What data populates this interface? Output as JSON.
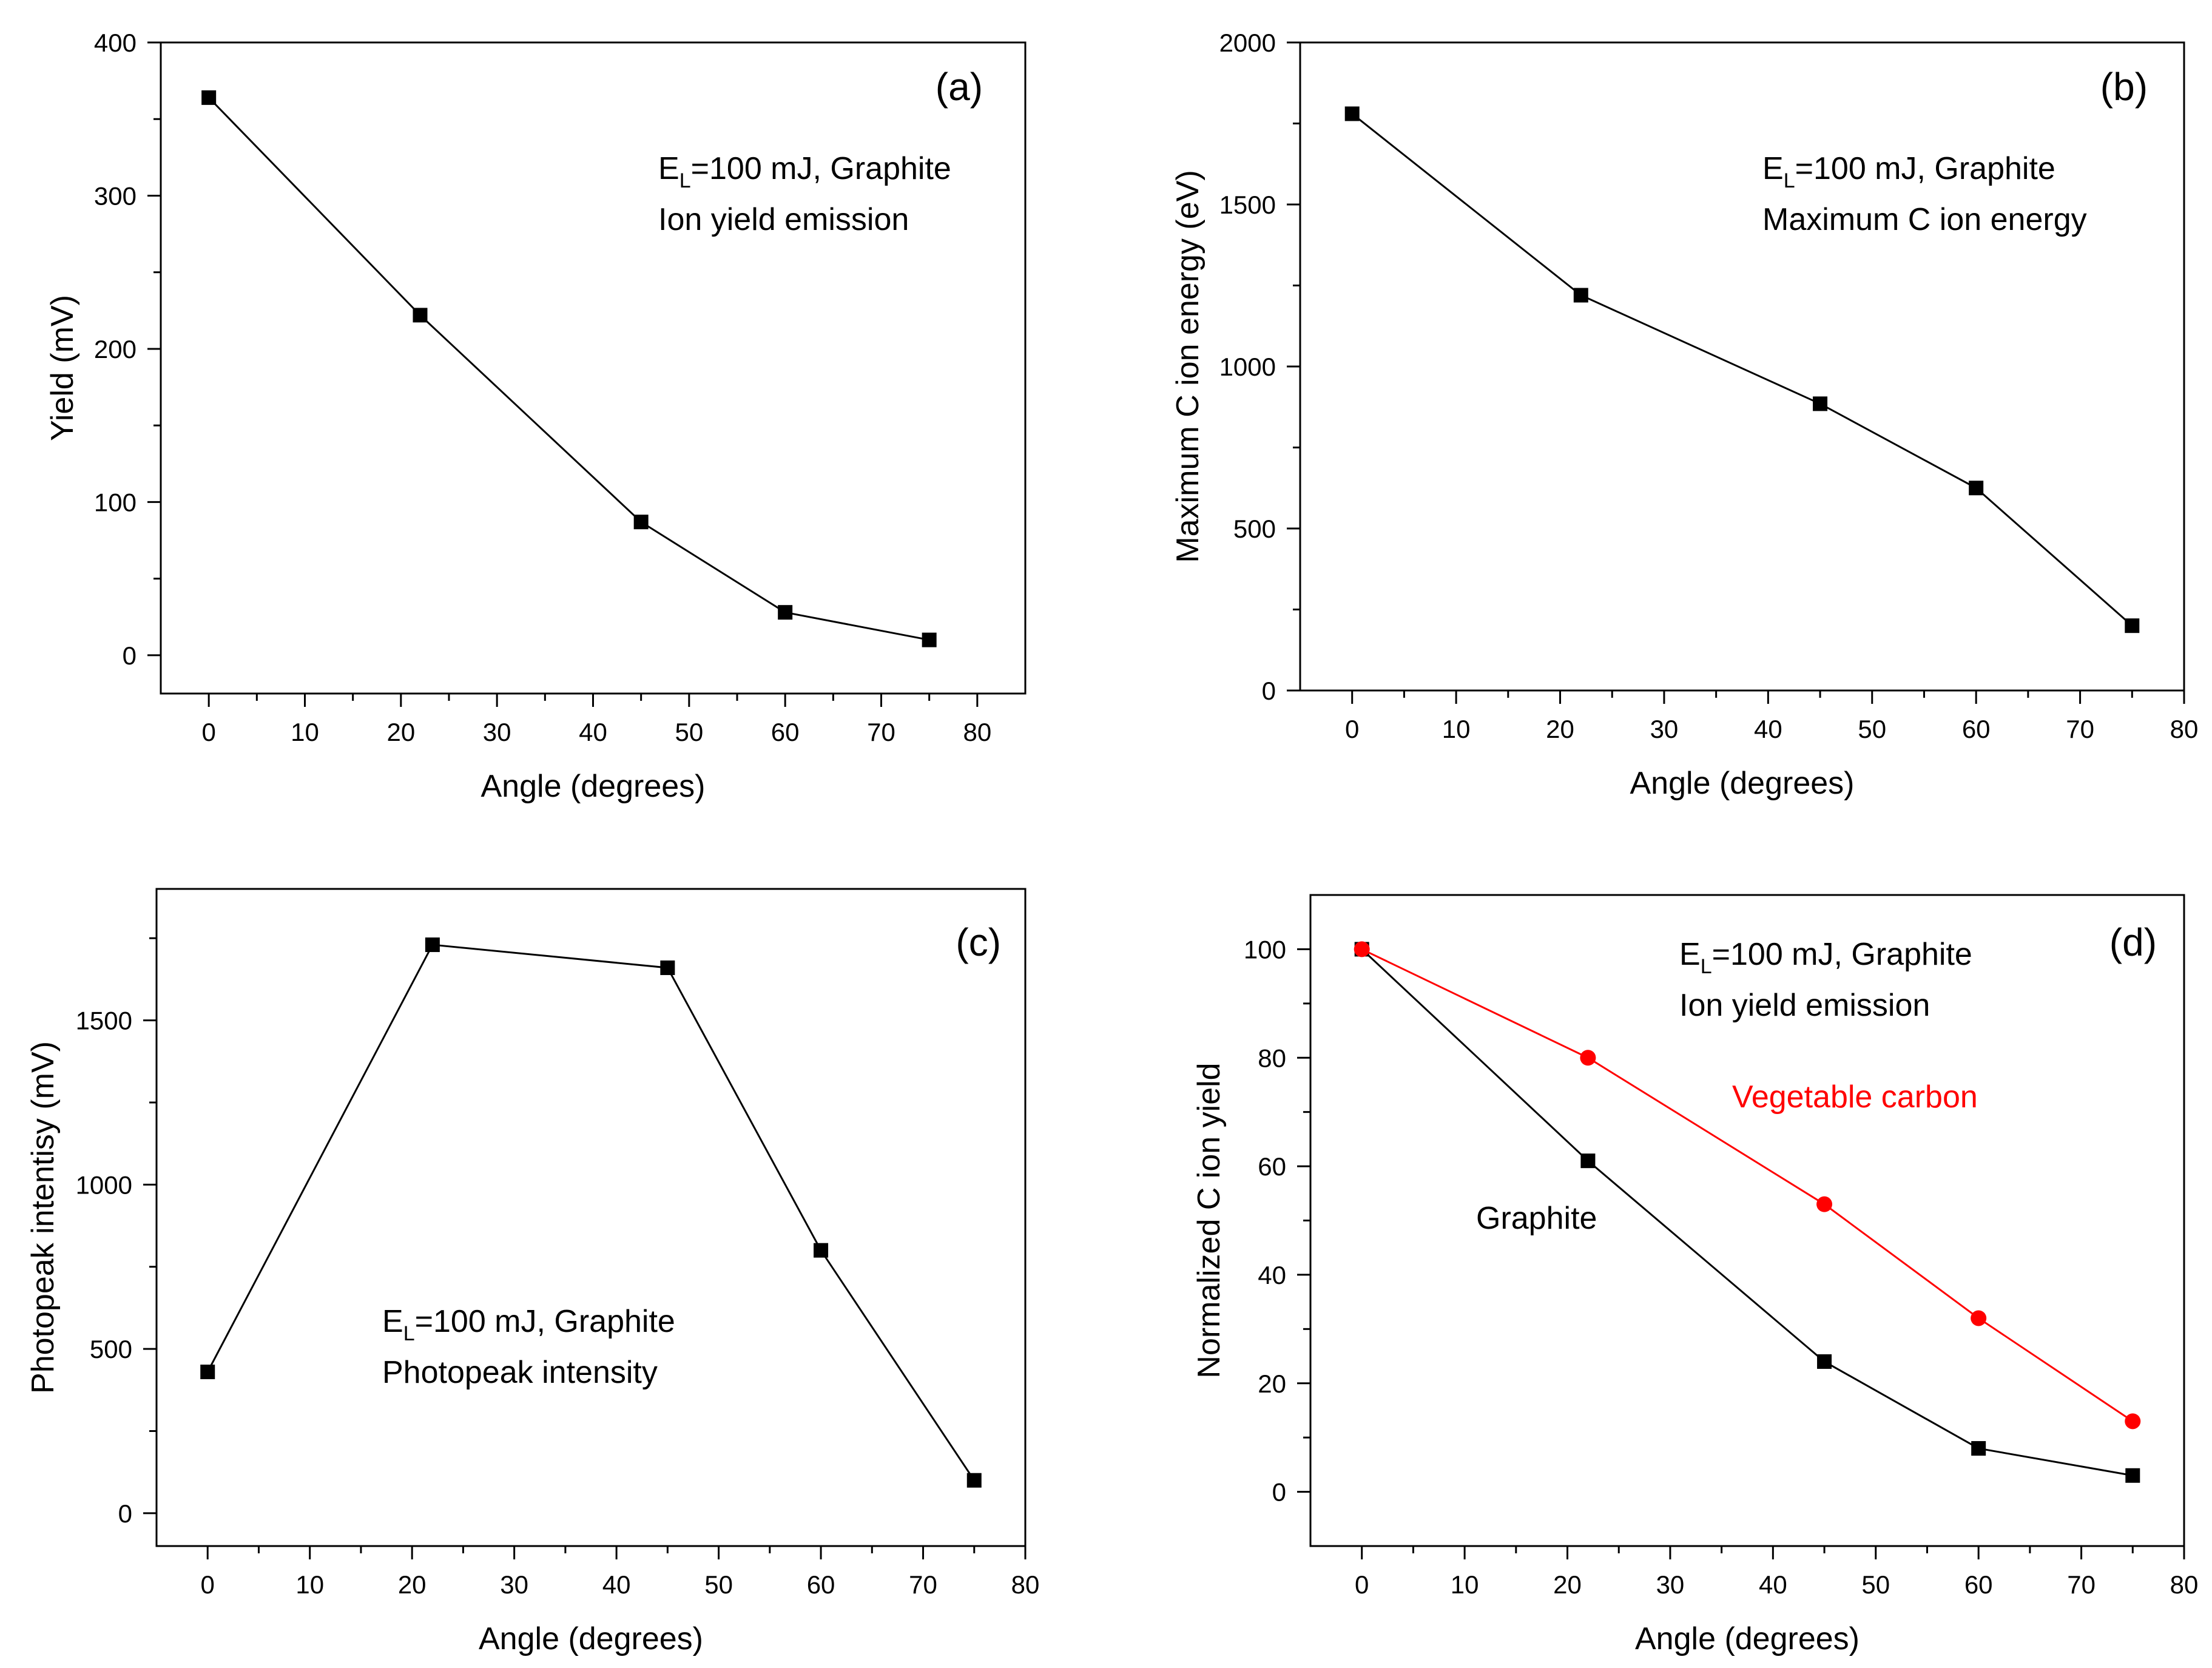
{
  "chart_data": [
    {
      "panel": "(a)",
      "type": "line",
      "xlabel": "Angle (degrees)",
      "ylabel": "Yield (mV)",
      "xlim": [
        -5,
        85
      ],
      "ylim": [
        -25,
        400
      ],
      "xticks": [
        0,
        10,
        20,
        30,
        40,
        50,
        60,
        70,
        80
      ],
      "yticks": [
        0,
        100,
        200,
        300,
        400
      ],
      "annotation": {
        "line1_prefix": "E",
        "line1_sub": "L",
        "line1_rest": "=100 mJ, Graphite",
        "line2": "Ion yield emission"
      },
      "series": [
        {
          "name": "Graphite",
          "color": "#000000",
          "marker": "square",
          "x": [
            0,
            22,
            45,
            60,
            75
          ],
          "y": [
            364,
            222,
            87,
            28,
            10
          ]
        }
      ]
    },
    {
      "panel": "(b)",
      "type": "line",
      "xlabel": "Angle (degrees)",
      "ylabel": "Maximum C ion energy (eV)",
      "xlim": [
        -5,
        80
      ],
      "ylim": [
        0,
        2000
      ],
      "xticks": [
        0,
        10,
        20,
        30,
        40,
        50,
        60,
        70,
        80
      ],
      "yticks": [
        0,
        500,
        1000,
        1500,
        2000
      ],
      "annotation": {
        "line1_prefix": "E",
        "line1_sub": "L",
        "line1_rest": "=100 mJ, Graphite",
        "line2": "Maximum C ion energy"
      },
      "series": [
        {
          "name": "Graphite",
          "color": "#000000",
          "marker": "square",
          "x": [
            0,
            22,
            45,
            60,
            75
          ],
          "y": [
            1780,
            1220,
            885,
            625,
            200
          ]
        }
      ]
    },
    {
      "panel": "(c)",
      "type": "line",
      "xlabel": "Angle (degrees)",
      "ylabel": "Photopeak intentisy (mV)",
      "xlim": [
        -5,
        80
      ],
      "ylim": [
        -100,
        1900
      ],
      "xticks": [
        0,
        10,
        20,
        30,
        40,
        50,
        60,
        70,
        80
      ],
      "yticks": [
        0,
        500,
        1000,
        1500
      ],
      "annotation": {
        "line1_prefix": "E",
        "line1_sub": "L",
        "line1_rest": "=100 mJ, Graphite",
        "line2": "Photopeak intensity"
      },
      "series": [
        {
          "name": "Graphite",
          "color": "#000000",
          "marker": "square",
          "x": [
            0,
            22,
            45,
            60,
            75
          ],
          "y": [
            430,
            1730,
            1660,
            800,
            100
          ]
        }
      ]
    },
    {
      "panel": "(d)",
      "type": "line",
      "xlabel": "Angle (degrees)",
      "ylabel": "Normalized C ion yield",
      "xlim": [
        -5,
        80
      ],
      "ylim": [
        -10,
        110
      ],
      "xticks": [
        0,
        10,
        20,
        30,
        40,
        50,
        60,
        70,
        80
      ],
      "yticks": [
        0,
        20,
        40,
        60,
        80,
        100
      ],
      "annotation": {
        "line1_prefix": "E",
        "line1_sub": "L",
        "line1_rest": "=100 mJ, Graphite",
        "line2": "Ion yield emission"
      },
      "series": [
        {
          "name": "Graphite",
          "color": "#000000",
          "marker": "square",
          "x": [
            0,
            22,
            45,
            60,
            75
          ],
          "y": [
            100,
            61,
            24,
            8,
            3
          ]
        },
        {
          "name": "Vegetable carbon",
          "color": "#ff0000",
          "marker": "circle",
          "x": [
            0,
            22,
            45,
            60,
            75
          ],
          "y": [
            100,
            80,
            53,
            32,
            13
          ]
        }
      ]
    }
  ]
}
